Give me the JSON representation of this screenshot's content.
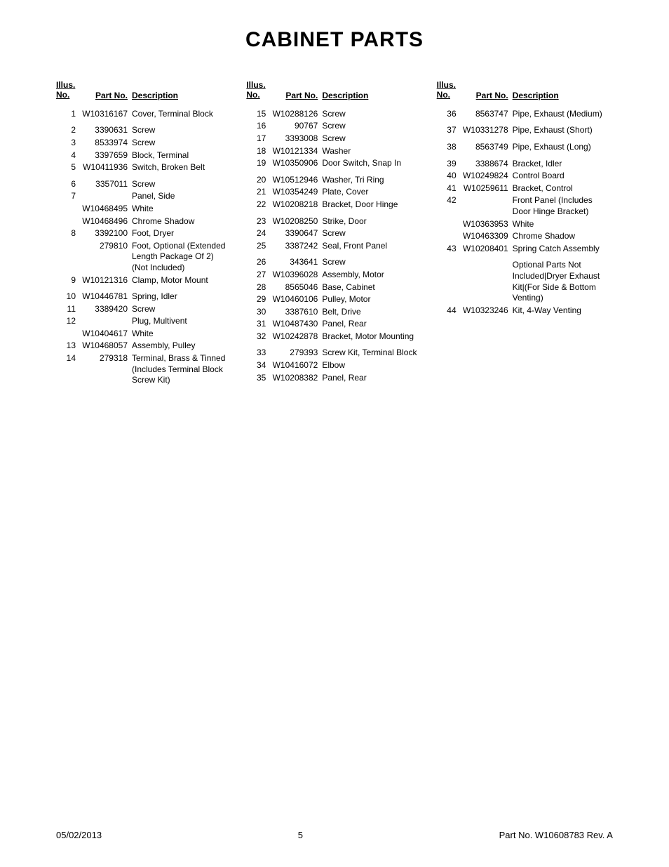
{
  "title": "CABINET PARTS",
  "headers": {
    "illus": "Illus.\nNo.",
    "partno": "Part No.",
    "desc": "Description"
  },
  "columns": [
    {
      "rows": [
        {
          "illus": "1",
          "partno": "W10316167",
          "desc": "Cover, Terminal Block",
          "gapBefore": false
        },
        {
          "illus": "2",
          "partno": "3390631",
          "desc": "Screw",
          "gapBefore": true
        },
        {
          "illus": "3",
          "partno": "8533974",
          "desc": "Screw"
        },
        {
          "illus": "4",
          "partno": "3397659",
          "desc": "Block, Terminal"
        },
        {
          "illus": "5",
          "partno": "W10411936",
          "desc": "Switch, Broken Belt"
        },
        {
          "illus": "6",
          "partno": "3357011",
          "desc": "Screw",
          "gapBefore": true
        },
        {
          "illus": "7",
          "partno": "",
          "desc": "Panel, Side"
        },
        {
          "illus": "",
          "partno": "W10468495",
          "desc": "White"
        },
        {
          "illus": "",
          "partno": "W10468496",
          "desc": "Chrome Shadow"
        },
        {
          "illus": "8",
          "partno": "3392100",
          "desc": "Foot, Dryer"
        },
        {
          "illus": "",
          "partno": "279810",
          "desc": "Foot, Optional (Extended Length Package Of 2) (Not Included)"
        },
        {
          "illus": "9",
          "partno": "W10121316",
          "desc": "Clamp, Motor Mount"
        },
        {
          "illus": "10",
          "partno": "W10446781",
          "desc": "Spring, Idler",
          "gapBefore": true
        },
        {
          "illus": "11",
          "partno": "3389420",
          "desc": "Screw"
        },
        {
          "illus": "12",
          "partno": "",
          "desc": "Plug, Multivent"
        },
        {
          "illus": "",
          "partno": "W10404617",
          "desc": "White"
        },
        {
          "illus": "13",
          "partno": "W10468057",
          "desc": "Assembly, Pulley"
        },
        {
          "illus": "14",
          "partno": "279318",
          "desc": "Terminal, Brass & Tinned (Includes Terminal Block Screw Kit)"
        }
      ]
    },
    {
      "rows": [
        {
          "illus": "15",
          "partno": "W10288126",
          "desc": "Screw"
        },
        {
          "illus": "16",
          "partno": "90767",
          "desc": "Screw"
        },
        {
          "illus": "17",
          "partno": "3393008",
          "desc": "Screw"
        },
        {
          "illus": "18",
          "partno": "W10121334",
          "desc": "Washer"
        },
        {
          "illus": "19",
          "partno": "W10350906",
          "desc": "Door Switch, Snap In"
        },
        {
          "illus": "20",
          "partno": "W10512946",
          "desc": "Washer, Tri Ring",
          "gapBefore": true
        },
        {
          "illus": "21",
          "partno": "W10354249",
          "desc": "Plate, Cover"
        },
        {
          "illus": "22",
          "partno": "W10208218",
          "desc": "Bracket, Door Hinge"
        },
        {
          "illus": "23",
          "partno": "W10208250",
          "desc": "Strike, Door",
          "gapBefore": true
        },
        {
          "illus": "24",
          "partno": "3390647",
          "desc": "Screw"
        },
        {
          "illus": "25",
          "partno": "3387242",
          "desc": "Seal, Front Panel"
        },
        {
          "illus": "26",
          "partno": "343641",
          "desc": "Screw",
          "gapBefore": true
        },
        {
          "illus": "27",
          "partno": "W10396028",
          "desc": "Assembly, Motor"
        },
        {
          "illus": "28",
          "partno": "8565046",
          "desc": "Base, Cabinet"
        },
        {
          "illus": "29",
          "partno": "W10460106",
          "desc": "Pulley, Motor"
        },
        {
          "illus": "30",
          "partno": "3387610",
          "desc": "Belt, Drive"
        },
        {
          "illus": "31",
          "partno": "W10487430",
          "desc": "Panel, Rear"
        },
        {
          "illus": "32",
          "partno": "W10242878",
          "desc": "Bracket, Motor Mounting"
        },
        {
          "illus": "33",
          "partno": "279393",
          "desc": "Screw Kit, Terminal Block",
          "gapBefore": true
        },
        {
          "illus": "34",
          "partno": "W10416072",
          "desc": "Elbow"
        },
        {
          "illus": "35",
          "partno": "W10208382",
          "desc": "Panel, Rear"
        }
      ]
    },
    {
      "rows": [
        {
          "illus": "36",
          "partno": "8563747",
          "desc": "Pipe, Exhaust (Medium)"
        },
        {
          "illus": "37",
          "partno": "W10331278",
          "desc": "Pipe, Exhaust (Short)",
          "gapBefore": true
        },
        {
          "illus": "38",
          "partno": "8563749",
          "desc": "Pipe, Exhaust (Long)",
          "gapBefore": true
        },
        {
          "illus": "39",
          "partno": "3388674",
          "desc": "Bracket, Idler",
          "gapBefore": true
        },
        {
          "illus": "40",
          "partno": "W10249824",
          "desc": "Control Board"
        },
        {
          "illus": "41",
          "partno": "W10259611",
          "desc": "Bracket, Control"
        },
        {
          "illus": "42",
          "partno": "",
          "desc": "Front Panel (Includes Door Hinge Bracket)"
        },
        {
          "illus": "",
          "partno": "W10363953",
          "desc": "White"
        },
        {
          "illus": "",
          "partno": "W10463309",
          "desc": "Chrome Shadow"
        },
        {
          "illus": "43",
          "partno": "W10208401",
          "desc": "Spring Catch Assembly"
        },
        {
          "illus": "",
          "partno": "",
          "desc": "Optional Parts Not Included|Dryer Exhaust Kit|(For Side & Bottom Venting)",
          "gapBefore": true
        },
        {
          "illus": "44",
          "partno": "W10323246",
          "desc": "Kit, 4-Way Venting"
        }
      ]
    }
  ],
  "footer": {
    "date": "05/02/2013",
    "page": "5",
    "partinfo": "Part No. W10608783  Rev.  A"
  }
}
